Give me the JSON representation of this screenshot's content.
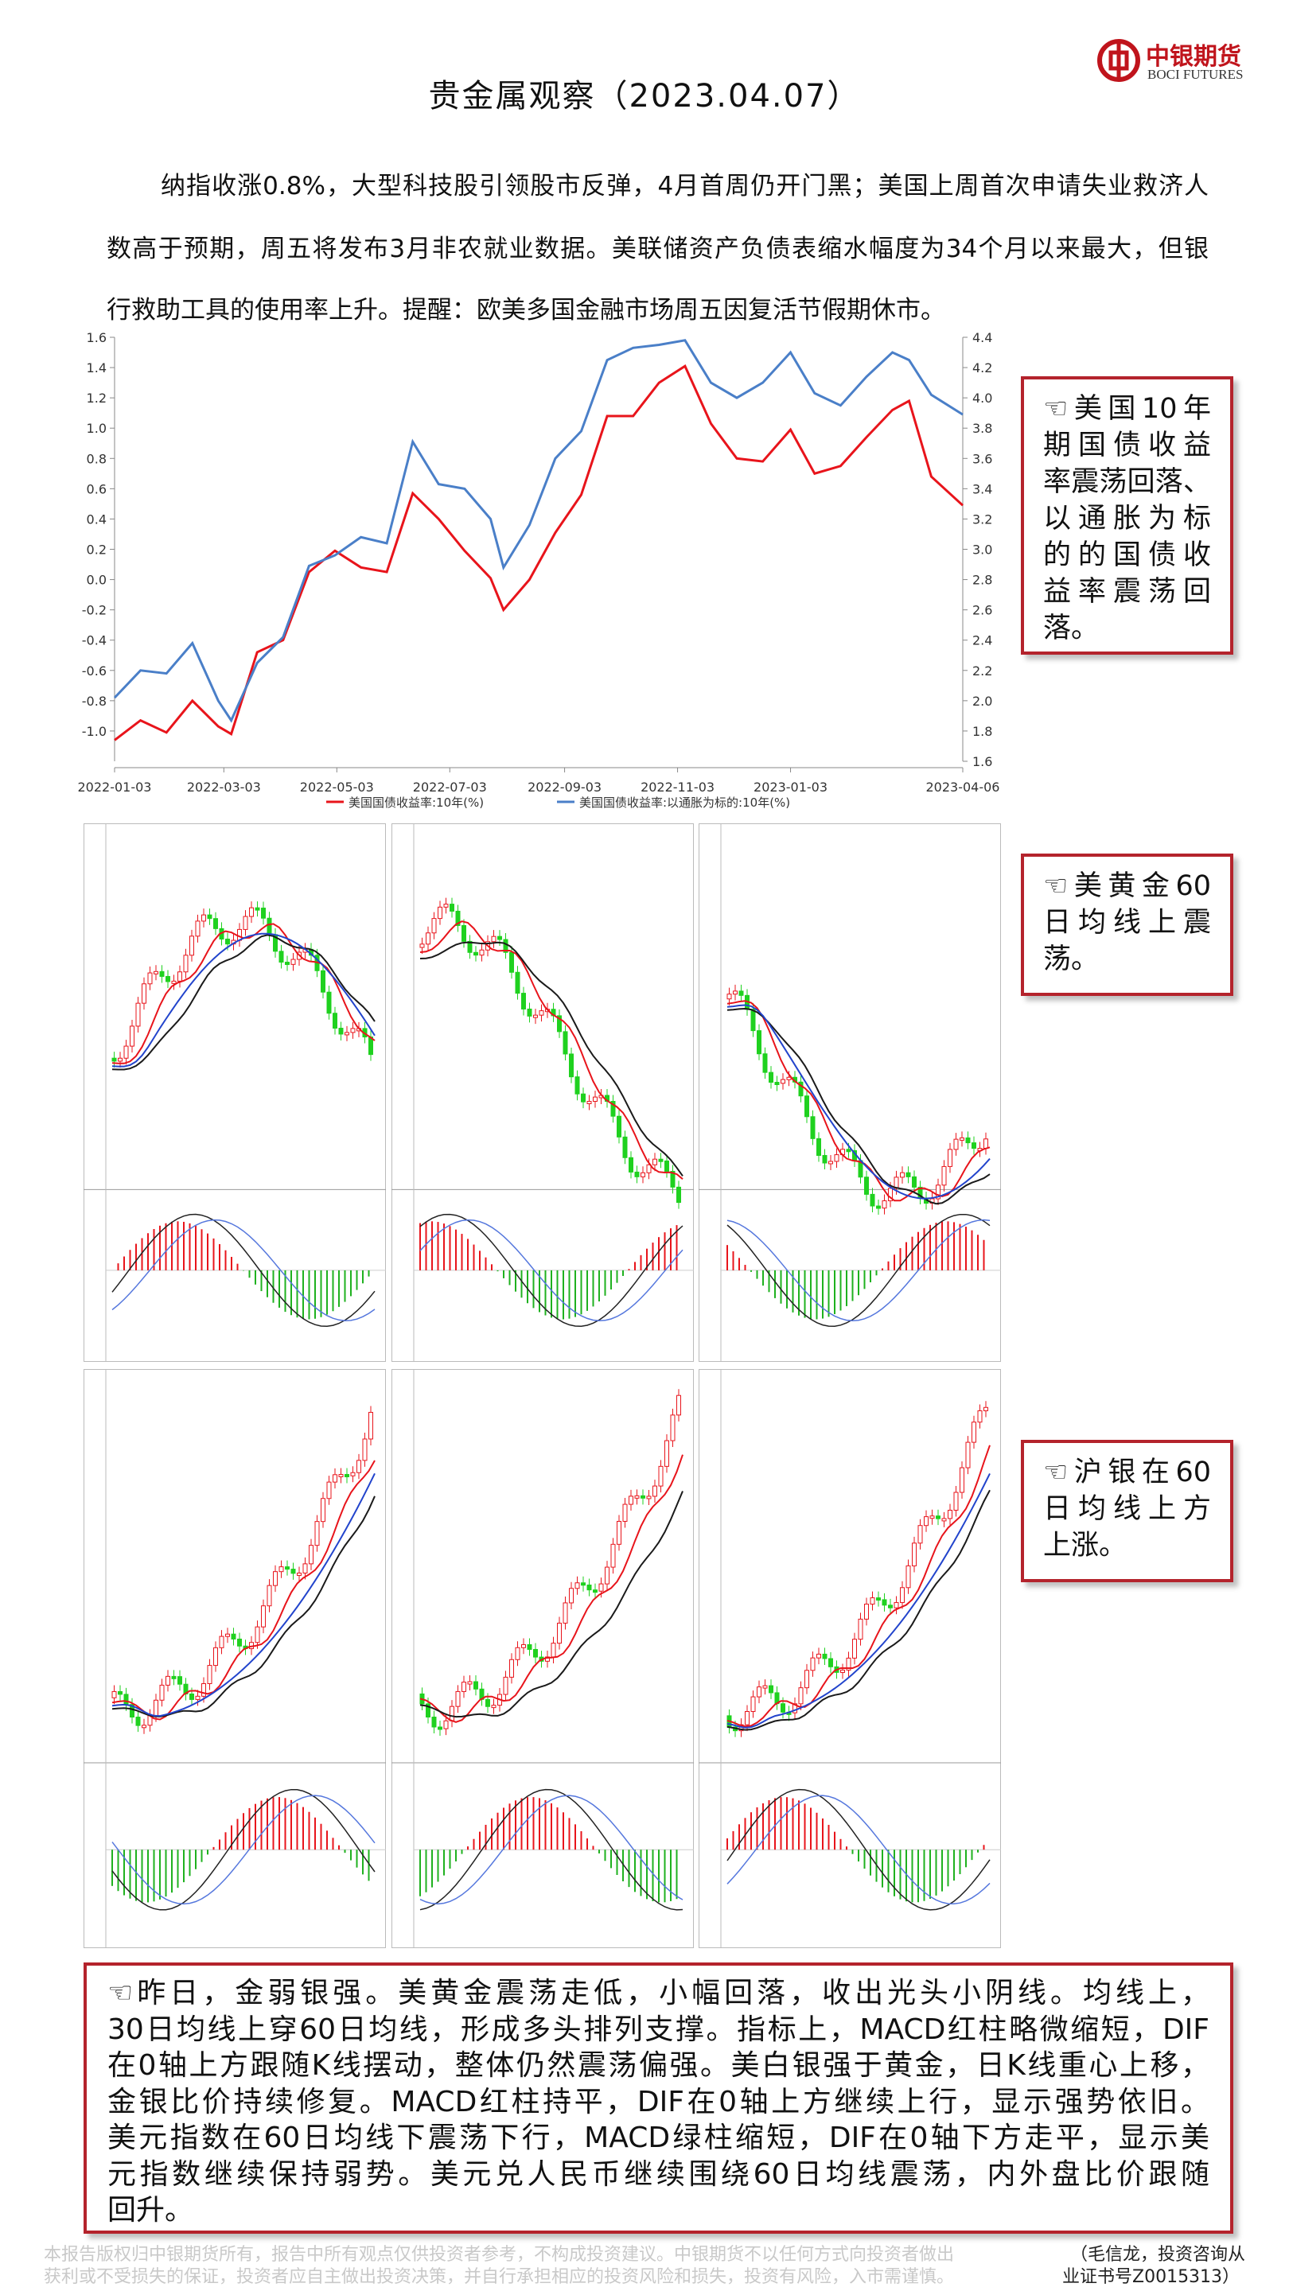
{
  "header": {
    "logo_cn": "中银期货",
    "logo_en": "BOCI FUTURES"
  },
  "title": "贵金属观察（2023.04.07）",
  "intro": [
    "纳指收涨0.8%，大型科技股引领股市反弹，4月首周仍开门黑；美国上周首次申请失业救济人",
    "数高于预期，周五将发布3月非农就业数据。美联储资产负债表缩水幅度为34个月以来最大，但银",
    "行救助工具的使用率上升。提醒：欧美多国金融市场周五因复活节假期休市。"
  ],
  "chart_data": {
    "type": "line",
    "x": [
      "2022-01-03",
      "2022-01-17",
      "2022-01-31",
      "2022-02-14",
      "2022-02-28",
      "2022-03-07",
      "2022-03-21",
      "2022-04-04",
      "2022-04-18",
      "2022-05-02",
      "2022-05-16",
      "2022-05-30",
      "2022-06-13",
      "2022-06-27",
      "2022-07-11",
      "2022-07-25",
      "2022-08-01",
      "2022-08-15",
      "2022-08-29",
      "2022-09-12",
      "2022-09-26",
      "2022-10-10",
      "2022-10-24",
      "2022-11-07",
      "2022-11-21",
      "2022-12-05",
      "2022-12-19",
      "2023-01-03",
      "2023-01-16",
      "2023-01-30",
      "2023-02-13",
      "2023-02-27",
      "2023-03-08",
      "2023-03-20",
      "2023-04-06"
    ],
    "series": [
      {
        "name": "美国国债收益率:10年(%)",
        "color": "#e8141b",
        "axis": "y2",
        "values": [
          1.74,
          1.87,
          1.79,
          2.0,
          1.83,
          1.78,
          2.32,
          2.4,
          2.85,
          2.99,
          2.88,
          2.85,
          3.37,
          3.2,
          2.99,
          2.81,
          2.6,
          2.8,
          3.11,
          3.36,
          3.88,
          3.88,
          4.1,
          4.21,
          3.83,
          3.6,
          3.58,
          3.79,
          3.5,
          3.55,
          3.74,
          3.92,
          3.98,
          3.48,
          3.29
        ]
      },
      {
        "name": "美国国债收益率:以通胀为标的:10年(%)",
        "color": "#4a7fc8",
        "values": [
          -0.78,
          -0.6,
          -0.62,
          -0.42,
          -0.8,
          -0.93,
          -0.55,
          -0.38,
          0.09,
          0.16,
          0.28,
          0.24,
          0.91,
          0.63,
          0.6,
          0.4,
          0.08,
          0.36,
          0.8,
          0.98,
          1.45,
          1.53,
          1.55,
          1.58,
          1.3,
          1.2,
          1.3,
          1.5,
          1.23,
          1.15,
          1.34,
          1.5,
          1.45,
          1.22,
          1.09
        ]
      }
    ],
    "xlim": [
      "2022-01-03",
      "2023-04-06"
    ],
    "xticks": [
      "2022-01-03",
      "2022-03-03",
      "2022-05-03",
      "2022-07-03",
      "2022-09-03",
      "2022-11-03",
      "2023-01-03",
      "2023-04-06"
    ],
    "ylim": [
      -1.2,
      1.6
    ],
    "yticks": [
      {
        "value": -1,
        "label": "-1.0"
      },
      -0.8,
      -0.6,
      -0.4,
      -0.2,
      {
        "value": 0,
        "label": "0.0"
      },
      0.2,
      0.4,
      0.6,
      0.8,
      {
        "value": 1,
        "label": "1.0"
      },
      1.2,
      1.4,
      1.6
    ],
    "y2lim": [
      1.6,
      4.4
    ],
    "y2ticks": [
      1.6,
      1.8,
      {
        "value": 2,
        "label": "2.0"
      },
      2.2,
      2.4,
      2.6,
      2.8,
      {
        "value": 3,
        "label": "3.0"
      },
      3.2,
      3.4,
      3.6,
      3.8,
      {
        "value": 4,
        "label": "4.0"
      },
      4.2,
      4.4
    ],
    "legend": "bottom"
  },
  "notes": [
    {
      "lines": [
        "☜美国10年",
        "期国债收益",
        "率震荡回落、",
        "以通胀为标",
        "的的国债收",
        "益率震荡回",
        "落。"
      ]
    },
    {
      "lines": [
        "☜美黄金60",
        "日均线上震",
        "荡。"
      ]
    },
    {
      "lines": [
        "☜沪银在60",
        "日均线上方",
        "上涨。"
      ]
    }
  ],
  "summary": [
    "☜昨日，金弱银强。美黄金震荡走低，小幅回落，收出光头小阴线。均线上，",
    "30日均线上穿60日均线，形成多头排列支撑。指标上，MACD红柱略微缩短，DIF",
    "在0轴上方跟随K线摆动，整体仍然震荡偏强。美白银强于黄金，日K线重心上移，",
    "金银比价持续修复。MACD红柱持平，DIF在0轴上方继续上行，显示强势依旧。",
    "美元指数在60日均线下震荡下行，MACD绿柱缩短，DIF在0轴下方走平，显示美",
    "元指数继续保持弱势。美元兑人民币继续围绕60日均线震荡，内外盘比价跟随",
    "回升。"
  ],
  "footer": {
    "disclaimer": [
      "本报告版权归中银期货所有，报告中所有观点仅供投资者参考，不构成投资建议。中银期货不以任何方式向投资者做出",
      "获利或不受损失的保证，投资者应自主做出投资决策，并自行承担相应的投资风险和损失，投资有风险，入市需谨慎。"
    ],
    "author": [
      "（毛信龙，投资咨询从",
      "业证书号Z0015313）"
    ]
  }
}
